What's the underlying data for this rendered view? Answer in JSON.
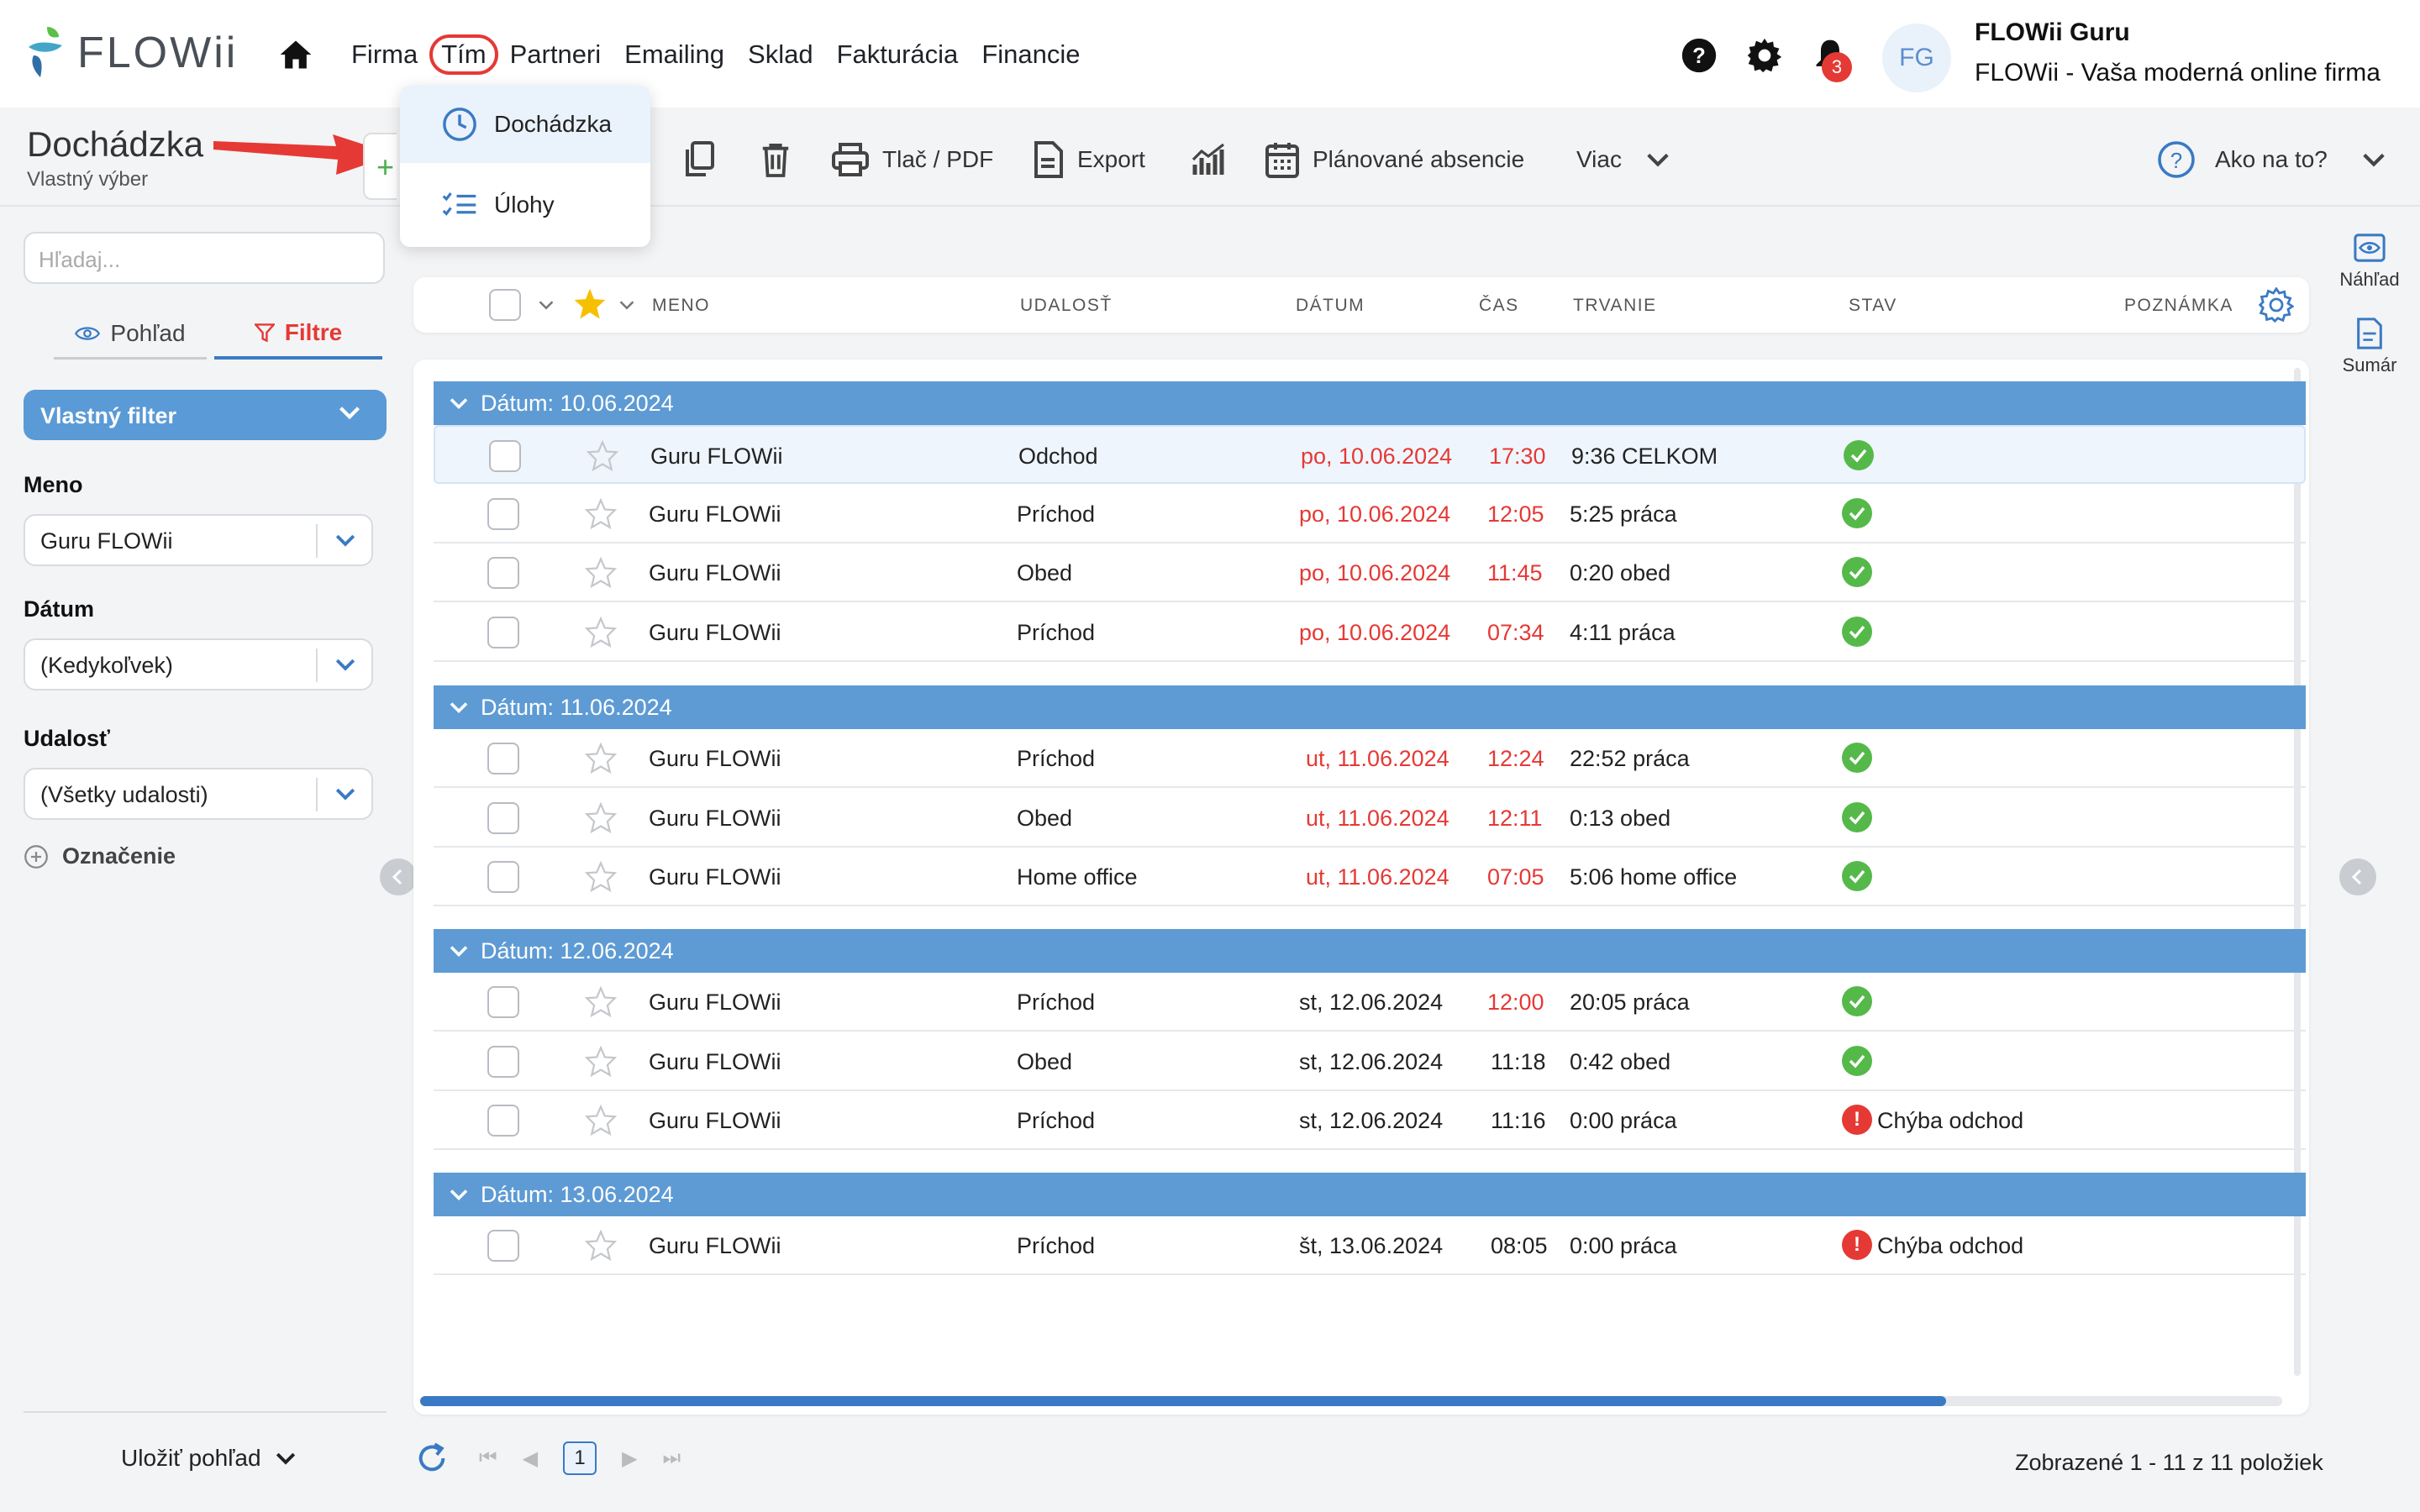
{
  "app": {
    "logo_text": "FLOWii",
    "nav": [
      "Firma",
      "Tím",
      "Partneri",
      "Emailing",
      "Sklad",
      "Fakturácia",
      "Financie"
    ],
    "notifications_count": "3",
    "avatar_initials": "FG",
    "user_name": "FLOWii Guru",
    "user_company": "FLOWii - Vaša moderná online firma"
  },
  "dropdown": {
    "items": [
      "Dochádzka",
      "Úlohy"
    ]
  },
  "toolbar": {
    "title": "Dochádzka",
    "subtitle": "Vlastný výber",
    "print": "Tlač / PDF",
    "export": "Export",
    "planned": "Plánované absencie",
    "more": "Viac",
    "help": "Ako na to?"
  },
  "sidebar": {
    "search_placeholder": "Hľadaj...",
    "tab_view": "Pohľad",
    "tab_filters": "Filtre",
    "custom_filter": "Vlastný filter",
    "name_label": "Meno",
    "name_value": "Guru FLOWii",
    "date_label": "Dátum",
    "date_value": "(Kedykoľvek)",
    "event_label": "Udalosť",
    "event_value": "(Všetky udalosti)",
    "marking": "Označenie",
    "save_view": "Uložiť pohľad"
  },
  "grid": {
    "columns": [
      "MENO",
      "UDALOSŤ",
      "DÁTUM",
      "ČAS",
      "TRVANIE",
      "STAV",
      "POZNÁMKA"
    ],
    "groups": [
      {
        "label": "Dátum: 10.06.2024",
        "rows": [
          {
            "name": "Guru FLOWii",
            "event": "Odchod",
            "date": "po, 10.06.2024",
            "time": "17:30",
            "duration": "9:36 CELKOM",
            "status": "ok",
            "status_text": "",
            "date_red": true,
            "time_red": true
          },
          {
            "name": "Guru FLOWii",
            "event": "Príchod",
            "date": "po, 10.06.2024",
            "time": "12:05",
            "duration": "5:25 práca",
            "status": "ok",
            "status_text": "",
            "date_red": true,
            "time_red": true
          },
          {
            "name": "Guru FLOWii",
            "event": "Obed",
            "date": "po, 10.06.2024",
            "time": "11:45",
            "duration": "0:20 obed",
            "status": "ok",
            "status_text": "",
            "date_red": true,
            "time_red": true
          },
          {
            "name": "Guru FLOWii",
            "event": "Príchod",
            "date": "po, 10.06.2024",
            "time": "07:34",
            "duration": "4:11 práca",
            "status": "ok",
            "status_text": "",
            "date_red": true,
            "time_red": true
          }
        ]
      },
      {
        "label": "Dátum: 11.06.2024",
        "rows": [
          {
            "name": "Guru FLOWii",
            "event": "Príchod",
            "date": "ut, 11.06.2024",
            "time": "12:24",
            "duration": "22:52 práca",
            "status": "ok",
            "status_text": "",
            "date_red": true,
            "time_red": true
          },
          {
            "name": "Guru FLOWii",
            "event": "Obed",
            "date": "ut, 11.06.2024",
            "time": "12:11",
            "duration": "0:13 obed",
            "status": "ok",
            "status_text": "",
            "date_red": true,
            "time_red": true
          },
          {
            "name": "Guru FLOWii",
            "event": "Home office",
            "date": "ut, 11.06.2024",
            "time": "07:05",
            "duration": "5:06 home office",
            "status": "ok",
            "status_text": "",
            "date_red": true,
            "time_red": true
          }
        ]
      },
      {
        "label": "Dátum: 12.06.2024",
        "rows": [
          {
            "name": "Guru FLOWii",
            "event": "Príchod",
            "date": "st, 12.06.2024",
            "time": "12:00",
            "duration": "20:05 práca",
            "status": "ok",
            "status_text": "",
            "date_red": false,
            "time_red": true
          },
          {
            "name": "Guru FLOWii",
            "event": "Obed",
            "date": "st, 12.06.2024",
            "time": "11:18",
            "duration": "0:42 obed",
            "status": "ok",
            "status_text": "",
            "date_red": false,
            "time_red": false
          },
          {
            "name": "Guru FLOWii",
            "event": "Príchod",
            "date": "st, 12.06.2024",
            "time": "11:16",
            "duration": "0:00 práca",
            "status": "error",
            "status_text": "Chýba odchod",
            "date_red": false,
            "time_red": false
          }
        ]
      },
      {
        "label": "Dátum: 13.06.2024",
        "rows": [
          {
            "name": "Guru FLOWii",
            "event": "Príchod",
            "date": "št, 13.06.2024",
            "time": "08:05",
            "duration": "0:00 práca",
            "status": "error",
            "status_text": "Chýba odchod",
            "date_red": false,
            "time_red": false
          }
        ]
      }
    ]
  },
  "pager": {
    "current_page": "1",
    "info": "Zobrazené 1 - 11 z 11 položiek"
  },
  "right_rail": {
    "preview": "Náhľad",
    "summary": "Sumár"
  },
  "colors": {
    "accent": "#5e9bd4",
    "danger": "#e53935",
    "success": "#55b94a"
  }
}
